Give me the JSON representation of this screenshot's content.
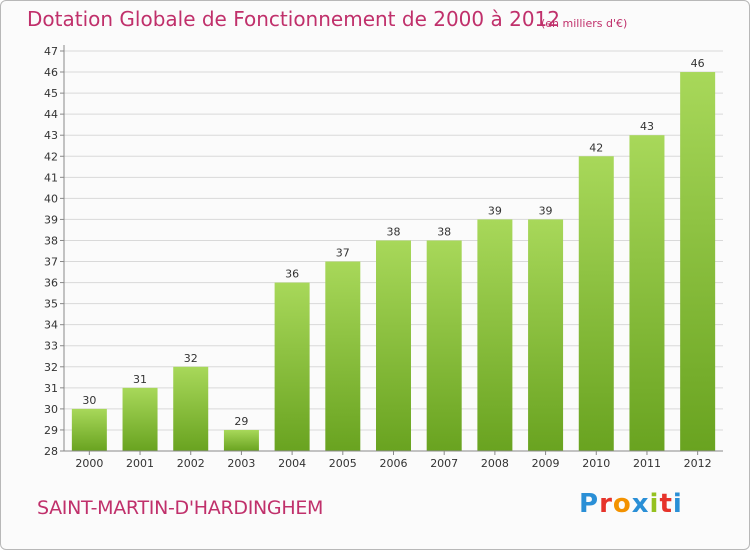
{
  "header": {
    "title": "Dotation Globale de Fonctionnement de 2000 à 2012",
    "subtitle": "(en milliers d'€)"
  },
  "footer": {
    "commune": "SAINT-MARTIN-D'HARDINGHEM",
    "logo": {
      "letters": [
        "P",
        "r",
        "o",
        "x",
        "i",
        "t",
        "i"
      ],
      "colors": [
        "#2a8fd6",
        "#e6332a",
        "#f39200",
        "#2a8fd6",
        "#95c11f",
        "#e6332a",
        "#2a8fd6"
      ]
    }
  },
  "colors": {
    "bar_light": "#a8d85a",
    "bar_dark": "#69a320",
    "grid": "#d9d9d9",
    "text": "#333333",
    "title": "#c0306b"
  },
  "chart_data": {
    "type": "bar",
    "categories": [
      "2000",
      "2001",
      "2002",
      "2003",
      "2004",
      "2005",
      "2006",
      "2007",
      "2008",
      "2009",
      "2010",
      "2011",
      "2012"
    ],
    "values": [
      30,
      31,
      32,
      29,
      36,
      37,
      38,
      38,
      39,
      39,
      42,
      43,
      46
    ],
    "data_labels": [
      "30",
      "31",
      "32",
      "29",
      "36",
      "37",
      "38",
      "38",
      "39",
      "39",
      "42",
      "43",
      "46"
    ],
    "yticks": [
      "28",
      "29",
      "30",
      "31",
      "32",
      "33",
      "34",
      "35",
      "36",
      "37",
      "38",
      "39",
      "40",
      "41",
      "42",
      "43",
      "44",
      "45",
      "46",
      "47"
    ],
    "ylim": [
      28,
      47
    ],
    "grid": true
  }
}
